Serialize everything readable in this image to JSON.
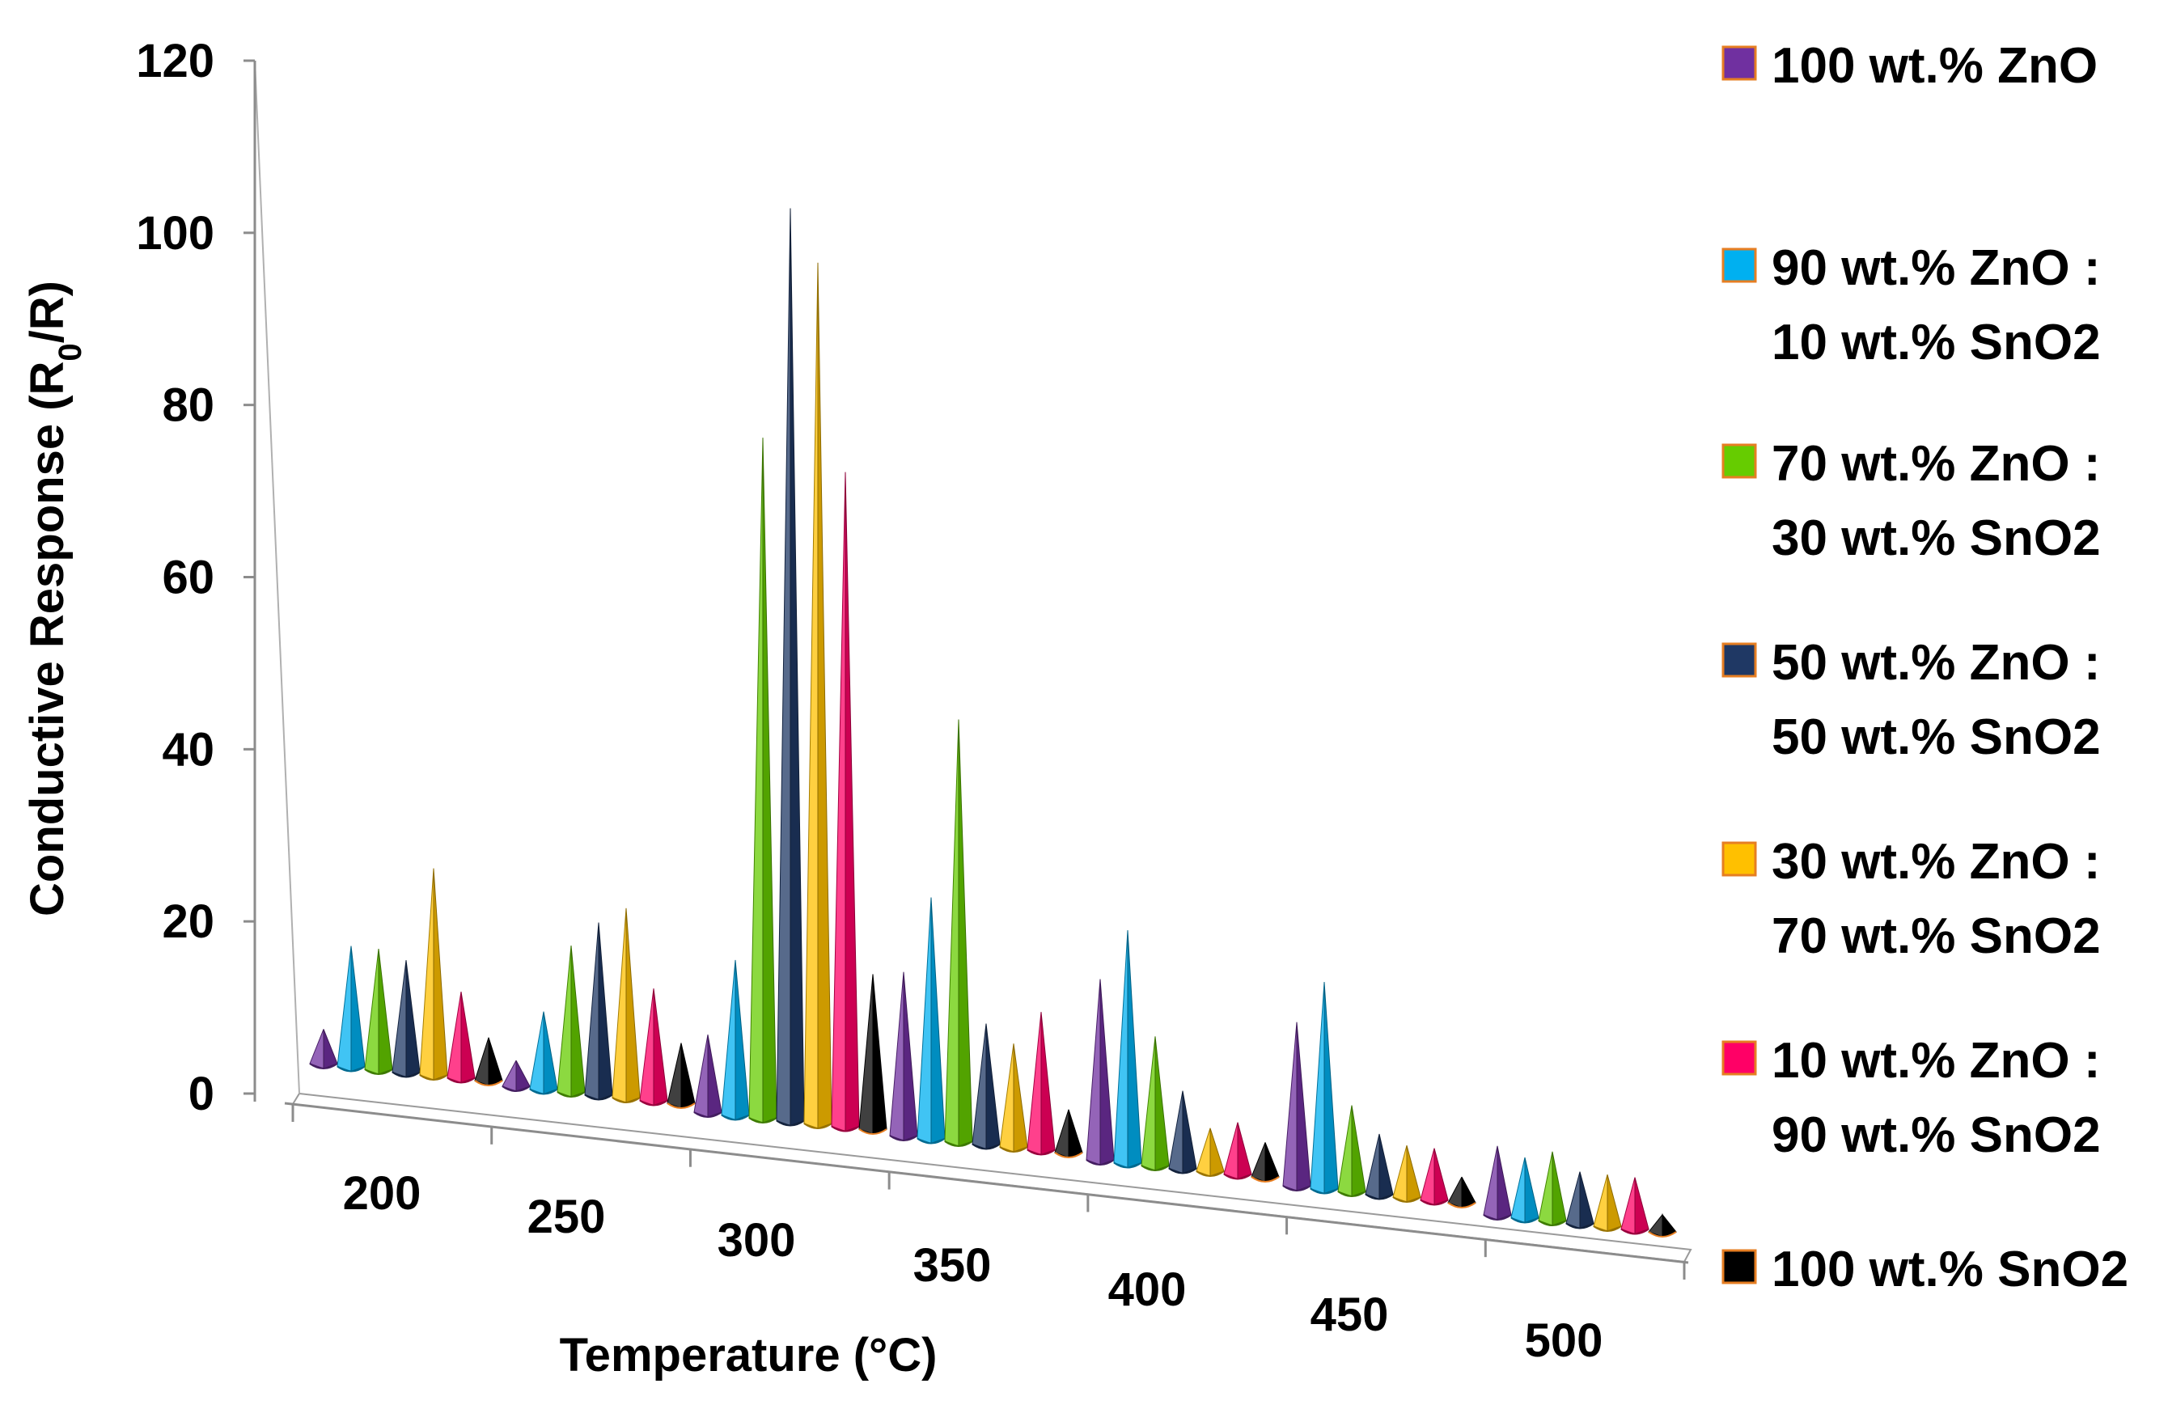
{
  "chart_data": {
    "type": "bar",
    "subtype": "3d-cone",
    "title": "",
    "xlabel": "Temperature (°C)",
    "ylabel": "Conductive Response (R",
    "ylabel_sub": "0",
    "ylabel_tail": "/R)",
    "ylim": [
      0,
      120
    ],
    "yticks": [
      "0",
      "20",
      "40",
      "60",
      "80",
      "100",
      "120"
    ],
    "categories": [
      "200",
      "250",
      "300",
      "350",
      "400",
      "450",
      "500"
    ],
    "series": [
      {
        "name": "100 wt.% ZnO",
        "color": "#7030A0",
        "values": [
          4,
          3,
          9,
          19,
          21,
          19,
          8
        ]
      },
      {
        "name": "90 wt.% ZnO : 10 wt.% SnO2",
        "color": "#00B0F0",
        "values": [
          14,
          9,
          18,
          28,
          27,
          24,
          7
        ]
      },
      {
        "name": "70 wt.% ZnO : 30 wt.% SnO2",
        "color": "#66CC00",
        "values": [
          14,
          17,
          79,
          49,
          15,
          10,
          8
        ]
      },
      {
        "name": "50 wt.% ZnO : 50 wt.% SnO2",
        "color": "#1F3864",
        "values": [
          13,
          20,
          106,
          14,
          9,
          7,
          6
        ]
      },
      {
        "name": "30 wt.% ZnO : 70 wt.% SnO2",
        "color": "#FFC000",
        "values": [
          24,
          22,
          100,
          12,
          5,
          6,
          6
        ]
      },
      {
        "name": "10 wt.% ZnO : 90 wt.% SnO2",
        "color": "#FF0066",
        "values": [
          10,
          13,
          76,
          16,
          6,
          6,
          6
        ]
      },
      {
        "name": "100 wt.% SnO2",
        "color": "#000000",
        "values": [
          5,
          7,
          18,
          5,
          4,
          3,
          2
        ]
      }
    ],
    "legend": {
      "position": "right",
      "entries": [
        [
          "100 wt.% ZnO"
        ],
        [
          "90 wt.% ZnO :",
          "10 wt.% SnO2"
        ],
        [
          "70 wt.% ZnO :",
          "30 wt.% SnO2"
        ],
        [
          "50 wt.% ZnO :",
          "50 wt.% SnO2"
        ],
        [
          "30 wt.% ZnO :",
          "70 wt.% SnO2"
        ],
        [
          "10 wt.% ZnO :",
          "90 wt.% SnO2"
        ],
        [
          "100 wt.% SnO2"
        ]
      ]
    },
    "grid": false
  }
}
